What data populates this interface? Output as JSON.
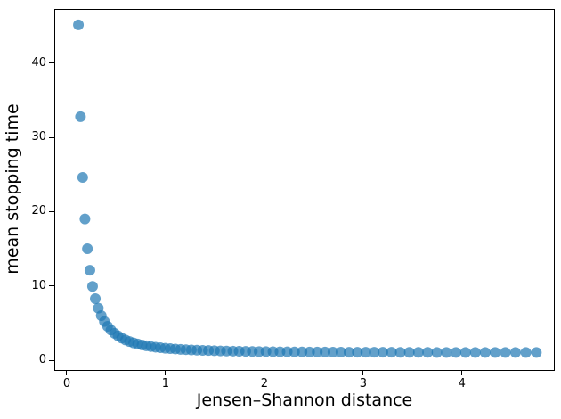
{
  "figure": {
    "background_color": "#ffffff",
    "spine_color": "#000000",
    "text_color": "#000000"
  },
  "chart_data": {
    "type": "scatter",
    "title": "",
    "xlabel": "Jensen–Shannon distance",
    "ylabel": "mean stopping time",
    "xlim": [
      -0.117,
      4.93
    ],
    "ylim": [
      -1.32,
      47.2
    ],
    "xticks": [
      0,
      1,
      2,
      3,
      4
    ],
    "yticks": [
      0,
      10,
      20,
      30,
      40
    ],
    "grid": false,
    "legend": false,
    "marker": {
      "shape": "circle",
      "color": "#1f77b4",
      "opacity": 0.7,
      "radius_px": 6
    },
    "points": {
      "x": [
        0.118,
        0.139,
        0.161,
        0.184,
        0.209,
        0.234,
        0.261,
        0.289,
        0.319,
        0.349,
        0.381,
        0.413,
        0.447,
        0.483,
        0.519,
        0.556,
        0.595,
        0.635,
        0.676,
        0.718,
        0.762,
        0.806,
        0.852,
        0.899,
        0.947,
        0.997,
        1.047,
        1.099,
        1.152,
        1.206,
        1.261,
        1.317,
        1.375,
        1.434,
        1.494,
        1.555,
        1.617,
        1.681,
        1.745,
        1.811,
        1.878,
        1.947,
        2.016,
        2.087,
        2.158,
        2.231,
        2.305,
        2.381,
        2.457,
        2.535,
        2.614,
        2.694,
        2.775,
        2.857,
        2.941,
        3.026,
        3.112,
        3.199,
        3.287,
        3.376,
        3.467,
        3.559,
        3.652,
        3.746,
        3.842,
        3.938,
        4.036,
        4.135,
        4.235,
        4.336,
        4.439,
        4.542,
        4.647,
        4.753
      ],
      "y": [
        45.18,
        32.8,
        24.62,
        19.02,
        15.02,
        12.11,
        9.94,
        8.29,
        7.01,
        6.01,
        5.21,
        4.57,
        4.05,
        3.62,
        3.27,
        2.97,
        2.72,
        2.51,
        2.33,
        2.18,
        2.05,
        1.94,
        1.84,
        1.75,
        1.68,
        1.61,
        1.56,
        1.51,
        1.46,
        1.42,
        1.38,
        1.35,
        1.32,
        1.3,
        1.27,
        1.25,
        1.23,
        1.22,
        1.2,
        1.19,
        1.17,
        1.16,
        1.15,
        1.14,
        1.13,
        1.12,
        1.11,
        1.11,
        1.1,
        1.09,
        1.09,
        1.08,
        1.08,
        1.07,
        1.07,
        1.07,
        1.06,
        1.06,
        1.06,
        1.05,
        1.05,
        1.05,
        1.05,
        1.04,
        1.04,
        1.04,
        1.04,
        1.04,
        1.03,
        1.03,
        1.03,
        1.03,
        1.03,
        1.03
      ]
    }
  }
}
